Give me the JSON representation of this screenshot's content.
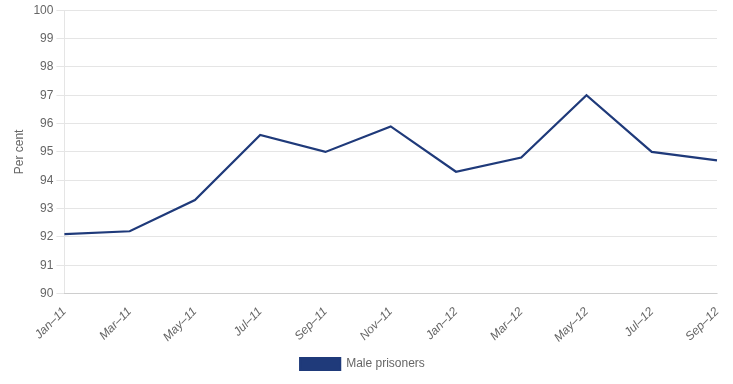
{
  "chart_data": {
    "type": "line",
    "ylabel": "Per cent",
    "categories": [
      "Jan–11",
      "Mar–11",
      "May–11",
      "Jul–11",
      "Sep–11",
      "Nov–11",
      "Jan–12",
      "Mar–12",
      "May–12",
      "Jul–12",
      "Sep–12"
    ],
    "series": [
      {
        "name": "Male prisoners",
        "color": "#1f3a7a",
        "values": [
          92.1,
          92.2,
          93.3,
          95.6,
          95.0,
          95.9,
          94.3,
          94.8,
          97.0,
          95.0,
          94.7
        ]
      }
    ],
    "ylim": [
      90,
      100
    ],
    "yticks": [
      90,
      91,
      92,
      93,
      94,
      95,
      96,
      97,
      98,
      99,
      100
    ],
    "grid": "y",
    "legend": "bottom"
  }
}
